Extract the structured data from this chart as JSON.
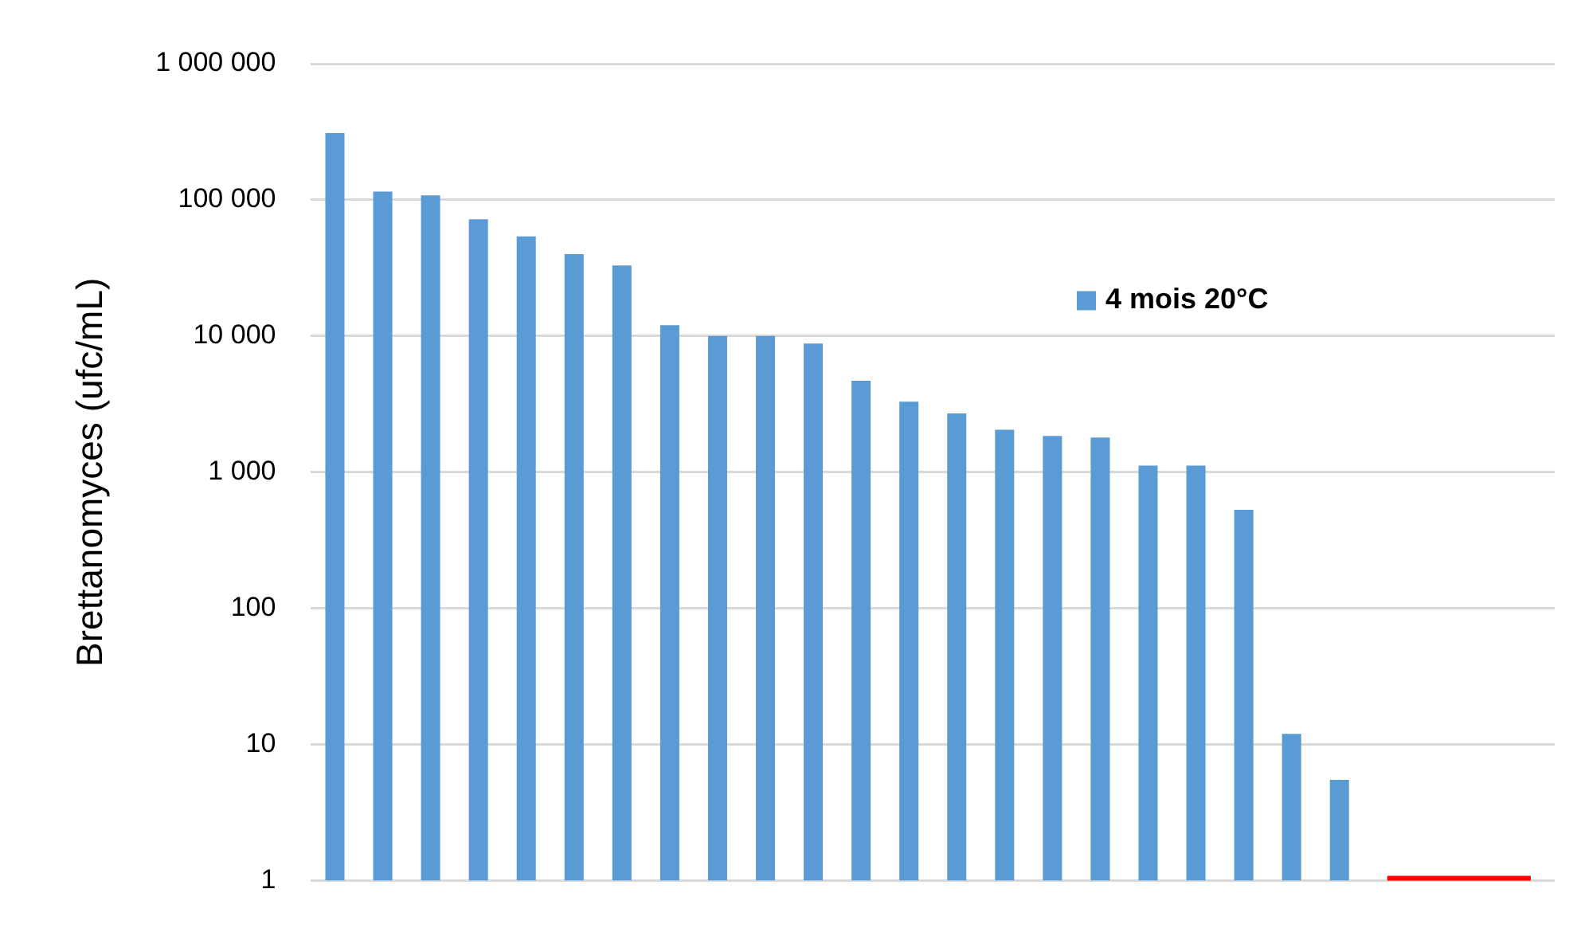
{
  "chart_data": {
    "type": "bar",
    "ylabel": "Brettanomyces (ufc/mL)",
    "log": "y",
    "categories": [
      null,
      null,
      null,
      null,
      null,
      null,
      null,
      null,
      null,
      null,
      null,
      null,
      null,
      null,
      null,
      null,
      null,
      null,
      null,
      null,
      null,
      null,
      null,
      null,
      null,
      null
    ],
    "series": [
      {
        "name": "4 mois 20°C",
        "color": "#5b9bd5",
        "values": [
          310000,
          115000,
          108000,
          72000,
          54000,
          40000,
          33000,
          12000,
          10000,
          10000,
          8800,
          4700,
          3300,
          2700,
          2050,
          1850,
          1800,
          1120,
          1120,
          530,
          12,
          5.5,
          null,
          null,
          null,
          null
        ]
      },
      {
        "type": "line",
        "color": "#ff0000",
        "values": [
          null,
          null,
          null,
          null,
          null,
          null,
          null,
          null,
          null,
          null,
          null,
          null,
          null,
          null,
          null,
          null,
          null,
          null,
          null,
          null,
          null,
          null,
          1,
          1,
          1,
          1
        ]
      }
    ],
    "ylim": [
      1,
      1000000
    ],
    "yticks": [
      1,
      10,
      100,
      {
        "value": 1000,
        "label": "1 000"
      },
      {
        "value": 10000,
        "label": "10 000"
      },
      {
        "value": 100000,
        "label": "100 000"
      },
      {
        "value": 1000000,
        "label": "1 000 000"
      }
    ],
    "grid": "y",
    "legend": "right",
    "tick_labels": "y"
  }
}
